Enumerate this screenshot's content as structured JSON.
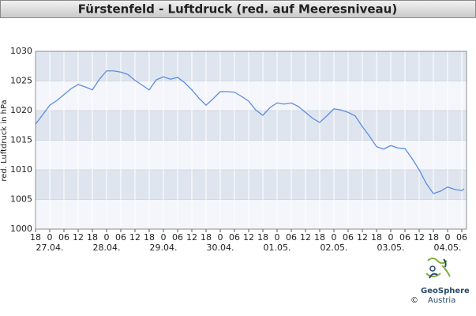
{
  "chart_data": {
    "type": "line",
    "title": "Fürstenfeld - Luftdruck (red. auf Meeresniveau)",
    "y_label": "red. Luftdruck in hPa",
    "x": [
      0,
      3,
      6,
      9,
      12,
      15,
      18,
      21,
      24,
      27,
      30,
      33,
      36,
      39,
      42,
      45,
      48,
      51,
      54,
      57,
      60,
      63,
      66,
      69,
      72,
      75,
      78,
      81,
      84,
      87,
      90,
      93,
      96,
      99,
      102,
      105,
      108,
      111,
      114,
      117,
      120,
      123,
      126,
      129,
      132,
      135,
      138,
      141,
      144,
      147,
      150,
      153,
      156,
      159,
      162,
      165,
      168,
      171,
      174,
      177,
      180,
      181
    ],
    "series": [
      {
        "name": "Luftdruck",
        "color": "#5b8de0",
        "values": [
          1017.7,
          1019.3,
          1020.9,
          1021.7,
          1022.7,
          1023.7,
          1024.4,
          1024.0,
          1023.5,
          1025.3,
          1026.7,
          1026.7,
          1026.5,
          1026.1,
          1025.1,
          1024.3,
          1023.5,
          1025.2,
          1025.7,
          1025.3,
          1025.6,
          1024.7,
          1023.5,
          1022.1,
          1020.9,
          1022.0,
          1023.2,
          1023.2,
          1023.1,
          1022.4,
          1021.6,
          1020.1,
          1019.2,
          1020.5,
          1021.3,
          1021.1,
          1021.3,
          1020.7,
          1019.7,
          1018.7,
          1018.0,
          1019.1,
          1020.3,
          1020.1,
          1019.7,
          1019.1,
          1017.3,
          1015.7,
          1013.9,
          1013.5,
          1014.1,
          1013.7,
          1013.6,
          1011.9,
          1010.0,
          1007.7,
          1006.0,
          1006.4,
          1007.1,
          1006.7,
          1006.5,
          1006.8
        ]
      }
    ],
    "xlim": [
      0,
      182
    ],
    "ylim": [
      1000,
      1030
    ],
    "yticks": [
      1000,
      1005,
      1010,
      1015,
      1020,
      1025,
      1030
    ],
    "xticks": [
      {
        "value": 0,
        "label": "18"
      },
      {
        "value": 6,
        "label": "0"
      },
      {
        "value": 12,
        "label": "06"
      },
      {
        "value": 18,
        "label": "12"
      },
      {
        "value": 24,
        "label": "18"
      },
      {
        "value": 30,
        "label": "0"
      },
      {
        "value": 36,
        "label": "06"
      },
      {
        "value": 42,
        "label": "12"
      },
      {
        "value": 48,
        "label": "18"
      },
      {
        "value": 54,
        "label": "0"
      },
      {
        "value": 60,
        "label": "06"
      },
      {
        "value": 66,
        "label": "12"
      },
      {
        "value": 72,
        "label": "18"
      },
      {
        "value": 78,
        "label": "0"
      },
      {
        "value": 84,
        "label": "06"
      },
      {
        "value": 90,
        "label": "12"
      },
      {
        "value": 96,
        "label": "18"
      },
      {
        "value": 102,
        "label": "0"
      },
      {
        "value": 108,
        "label": "06"
      },
      {
        "value": 114,
        "label": "12"
      },
      {
        "value": 120,
        "label": "18"
      },
      {
        "value": 126,
        "label": "0"
      },
      {
        "value": 132,
        "label": "06"
      },
      {
        "value": 138,
        "label": "12"
      },
      {
        "value": 144,
        "label": "18"
      },
      {
        "value": 150,
        "label": "0"
      },
      {
        "value": 156,
        "label": "06"
      },
      {
        "value": 162,
        "label": "12"
      },
      {
        "value": 168,
        "label": "18"
      },
      {
        "value": 174,
        "label": "0"
      },
      {
        "value": 180,
        "label": "06"
      }
    ],
    "date_ticks": [
      {
        "value": 6,
        "label": "27.04."
      },
      {
        "value": 30,
        "label": "28.04."
      },
      {
        "value": 54,
        "label": "29.04."
      },
      {
        "value": 78,
        "label": "30.04."
      },
      {
        "value": 102,
        "label": "01.05."
      },
      {
        "value": 126,
        "label": "02.05."
      },
      {
        "value": 150,
        "label": "03.05."
      },
      {
        "value": 174,
        "label": "04.05."
      }
    ],
    "grid": true,
    "grid_bands": true
  },
  "footer": {
    "copyright": "©",
    "brand": "GeoSphere",
    "brand_sub": "Austria"
  }
}
